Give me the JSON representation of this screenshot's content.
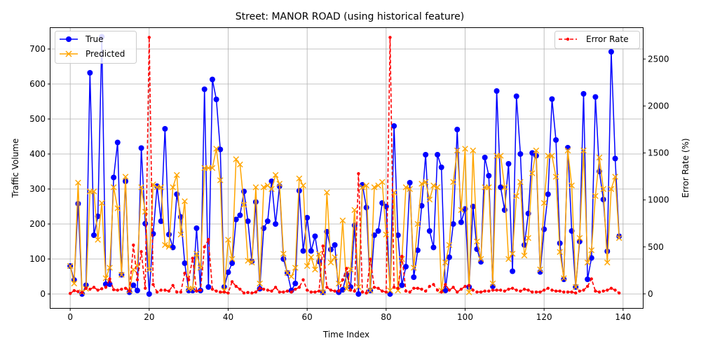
{
  "chart_data": {
    "type": "line",
    "title": "Street: MANOR ROAD (using historical feature)",
    "xlabel": "Time Index",
    "ylabel": "Traffic Volume",
    "y2label": "Error Rate (%)",
    "xlim": [
      -5,
      145
    ],
    "ylim": [
      -40,
      760
    ],
    "y2lim": [
      -150,
      2830
    ],
    "xticks": [
      0,
      20,
      40,
      60,
      80,
      100,
      120,
      140
    ],
    "yticks": [
      0,
      100,
      200,
      300,
      400,
      500,
      600,
      700
    ],
    "y2ticks": [
      0,
      500,
      1000,
      1500,
      2000,
      2500
    ],
    "grid": true,
    "legend_left_position": "top-left",
    "legend_right_position": "top-right",
    "colors": {
      "true": "#0000ff",
      "predicted": "#ffa500",
      "error": "#ff0000"
    },
    "series": [
      {
        "name": "True",
        "axis": "left",
        "marker": "circle",
        "values": [
          80,
          40,
          258,
          0,
          25,
          632,
          168,
          222,
          735,
          28,
          28,
          333,
          433,
          55,
          322,
          5,
          25,
          10,
          417,
          201,
          0,
          172,
          308,
          208,
          472,
          170,
          133,
          285,
          220,
          88,
          10,
          10,
          188,
          10,
          585,
          20,
          613,
          556,
          413,
          20,
          62,
          88,
          213,
          225,
          293,
          208,
          93,
          263,
          15,
          188,
          208,
          322,
          200,
          308,
          100,
          60,
          10,
          30,
          295,
          123,
          218,
          123,
          165,
          93,
          5,
          178,
          127,
          140,
          5,
          12,
          55,
          20,
          196,
          0,
          312,
          247,
          10,
          168,
          180,
          260,
          250,
          0,
          480,
          168,
          25,
          78,
          318,
          48,
          125,
          252,
          398,
          180,
          133,
          398,
          362,
          10,
          105,
          200,
          470,
          205,
          243,
          20,
          250,
          128,
          92,
          390,
          338,
          22,
          580,
          305,
          240,
          372,
          65,
          565,
          400,
          140,
          230,
          403,
          395,
          63,
          185,
          285,
          557,
          440,
          145,
          42,
          418,
          180,
          20,
          150,
          572,
          42,
          103,
          563,
          350,
          270,
          122,
          692,
          387,
          165
        ]
      },
      {
        "name": "Predicted",
        "axis": "left",
        "marker": "x",
        "values": [
          80,
          30,
          318,
          5,
          15,
          293,
          293,
          155,
          260,
          45,
          75,
          305,
          245,
          55,
          335,
          10,
          70,
          80,
          305,
          235,
          70,
          313,
          305,
          305,
          140,
          135,
          305,
          340,
          170,
          265,
          15,
          15,
          115,
          75,
          360,
          360,
          360,
          415,
          325,
          10,
          155,
          100,
          385,
          370,
          255,
          95,
          90,
          305,
          30,
          305,
          310,
          300,
          340,
          315,
          115,
          60,
          50,
          75,
          330,
          310,
          80,
          105,
          70,
          115,
          5,
          290,
          90,
          105,
          30,
          210,
          15,
          70,
          240,
          20,
          305,
          310,
          10,
          305,
          310,
          320,
          170,
          10,
          290,
          10,
          100,
          305,
          300,
          75,
          200,
          315,
          320,
          270,
          310,
          305,
          10,
          90,
          140,
          320,
          410,
          240,
          415,
          5,
          410,
          150,
          100,
          305,
          305,
          30,
          395,
          395,
          305,
          100,
          115,
          280,
          320,
          110,
          160,
          345,
          410,
          70,
          260,
          395,
          395,
          335,
          120,
          45,
          410,
          310,
          20,
          160,
          410,
          90,
          125,
          280,
          390,
          300,
          90,
          300,
          335,
          160
        ]
      },
      {
        "name": "Error Rate",
        "axis": "right",
        "marker": "dot",
        "values": [
          5,
          35,
          25,
          15,
          60,
          50,
          70,
          40,
          55,
          70,
          160,
          45,
          40,
          50,
          60,
          30,
          520,
          150,
          450,
          60,
          2730,
          100,
          20,
          40,
          40,
          30,
          90,
          20,
          20,
          220,
          150,
          380,
          30,
          40,
          500,
          580,
          50,
          30,
          20,
          20,
          10,
          130,
          80,
          50,
          10,
          15,
          10,
          20,
          60,
          50,
          40,
          30,
          70,
          20,
          20,
          30,
          20,
          50,
          70,
          150,
          40,
          20,
          20,
          30,
          510,
          70,
          40,
          30,
          30,
          150,
          270,
          40,
          30,
          1280,
          20,
          10,
          370,
          70,
          60,
          30,
          20,
          2730,
          70,
          60,
          400,
          30,
          20,
          60,
          60,
          50,
          30,
          80,
          100,
          40,
          20,
          100,
          40,
          70,
          20,
          50,
          80,
          90,
          40,
          20,
          20,
          30,
          30,
          40,
          40,
          40,
          30,
          50,
          60,
          40,
          30,
          50,
          40,
          20,
          20,
          20,
          40,
          60,
          40,
          30,
          30,
          20,
          20,
          20,
          10,
          30,
          40,
          80,
          160,
          30,
          20,
          30,
          40,
          60,
          40,
          10
        ]
      }
    ]
  }
}
